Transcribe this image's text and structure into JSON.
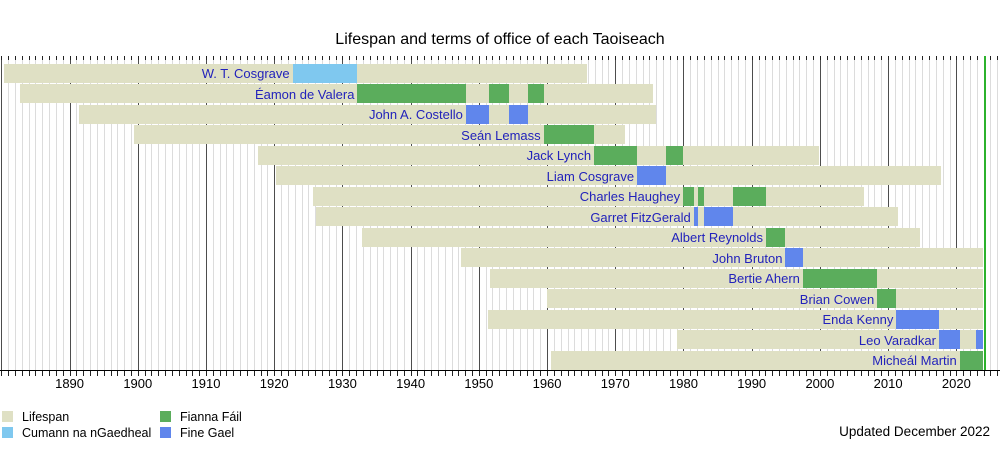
{
  "chart_data": {
    "type": "timeline",
    "title": "Lifespan and terms of office of each Taoiseach",
    "footer": "Updated December 2022",
    "x_axis": {
      "min": 1879.8,
      "max": 2026.4,
      "year_minor_step": 1,
      "tick_labels": [
        1890,
        1900,
        1910,
        1920,
        1930,
        1940,
        1950,
        1960,
        1970,
        1980,
        1990,
        2000,
        2010,
        2020
      ]
    },
    "present": 2023.9,
    "now_line_year": 2024.1,
    "colors": {
      "lifespan": "#dfe0c4",
      "CnG": "#7fc8ef",
      "FF": "#5bad5c",
      "FG": "#6086ec",
      "now_line": "#2cb22c",
      "row_label": "#2222bb"
    },
    "legend": [
      {
        "label": "Lifespan",
        "color_key": "lifespan"
      },
      {
        "label": "Cumann na nGaedheal",
        "color_key": "CnG"
      },
      {
        "label": "Fianna Fáil",
        "color_key": "FF"
      },
      {
        "label": "Fine Gael",
        "color_key": "FG"
      }
    ],
    "rows": [
      {
        "name": "W. T. Cosgrave",
        "birth": 1880.4,
        "death": 1965.9,
        "terms": [
          {
            "party": "CnG",
            "start": 1922.7,
            "end": 1932.2
          }
        ]
      },
      {
        "name": "Éamon de Valera",
        "birth": 1882.8,
        "death": 1975.6,
        "terms": [
          {
            "party": "FF",
            "start": 1932.2,
            "end": 1948.1
          },
          {
            "party": "FF",
            "start": 1951.5,
            "end": 1954.4
          },
          {
            "party": "FF",
            "start": 1957.2,
            "end": 1959.5
          }
        ]
      },
      {
        "name": "John A. Costello",
        "birth": 1891.4,
        "death": 1976.0,
        "terms": [
          {
            "party": "FG",
            "start": 1948.1,
            "end": 1951.5
          },
          {
            "party": "FG",
            "start": 1954.4,
            "end": 1957.2
          }
        ]
      },
      {
        "name": "Seán Lemass",
        "birth": 1899.5,
        "death": 1971.4,
        "terms": [
          {
            "party": "FF",
            "start": 1959.5,
            "end": 1966.9
          }
        ]
      },
      {
        "name": "Jack Lynch",
        "birth": 1917.6,
        "death": 1999.8,
        "terms": [
          {
            "party": "FF",
            "start": 1966.9,
            "end": 1973.2
          },
          {
            "party": "FF",
            "start": 1977.5,
            "end": 1979.95
          }
        ]
      },
      {
        "name": "Liam Cosgrave",
        "birth": 1920.3,
        "death": 2017.8,
        "terms": [
          {
            "party": "FG",
            "start": 1973.2,
            "end": 1977.5
          }
        ]
      },
      {
        "name": "Charles Haughey",
        "birth": 1925.7,
        "death": 2006.4,
        "terms": [
          {
            "party": "FF",
            "start": 1979.95,
            "end": 1981.5
          },
          {
            "party": "FF",
            "start": 1982.2,
            "end": 1982.95
          },
          {
            "party": "FF",
            "start": 1987.2,
            "end": 1992.1
          }
        ]
      },
      {
        "name": "Garret FitzGerald",
        "birth": 1926.1,
        "death": 2011.4,
        "terms": [
          {
            "party": "FG",
            "start": 1981.5,
            "end": 1982.2
          },
          {
            "party": "FG",
            "start": 1982.95,
            "end": 1987.2
          }
        ]
      },
      {
        "name": "Albert Reynolds",
        "birth": 1932.9,
        "death": 2014.6,
        "terms": [
          {
            "party": "FF",
            "start": 1992.1,
            "end": 1994.95
          }
        ]
      },
      {
        "name": "John Bruton",
        "birth": 1947.4,
        "death": null,
        "terms": [
          {
            "party": "FG",
            "start": 1994.95,
            "end": 1997.5
          }
        ]
      },
      {
        "name": "Bertie Ahern",
        "birth": 1951.7,
        "death": null,
        "terms": [
          {
            "party": "FF",
            "start": 1997.5,
            "end": 2008.4
          }
        ]
      },
      {
        "name": "Brian Cowen",
        "birth": 1960.0,
        "death": null,
        "terms": [
          {
            "party": "FF",
            "start": 2008.4,
            "end": 2011.2
          }
        ]
      },
      {
        "name": "Enda Kenny",
        "birth": 1951.3,
        "death": null,
        "terms": [
          {
            "party": "FG",
            "start": 2011.2,
            "end": 2017.45
          }
        ]
      },
      {
        "name": "Leo Varadkar",
        "birth": 1979.0,
        "death": null,
        "terms": [
          {
            "party": "FG",
            "start": 2017.45,
            "end": 2020.5
          },
          {
            "party": "FG",
            "start": 2022.95,
            "end": null
          }
        ]
      },
      {
        "name": "Micheál Martin",
        "birth": 1960.6,
        "death": null,
        "terms": [
          {
            "party": "FF",
            "start": 2020.5,
            "end": null
          }
        ]
      }
    ]
  }
}
